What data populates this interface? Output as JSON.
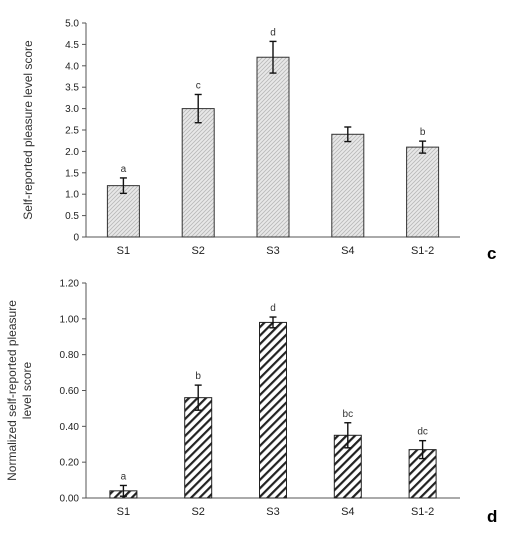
{
  "chart_data": [
    {
      "type": "bar",
      "panel_label": "c",
      "ylabel": "Self-reported pleasure level score",
      "categories": [
        "S1",
        "S2",
        "S3",
        "S4",
        "S1-2"
      ],
      "values": [
        1.2,
        3.0,
        4.2,
        2.4,
        2.1
      ],
      "errors": [
        0.18,
        0.33,
        0.37,
        0.17,
        0.14
      ],
      "significance_labels": [
        "a",
        "c",
        "d",
        "",
        "b"
      ],
      "yticks": [
        "0",
        "0.5",
        "1.0",
        "1.5",
        "2.0",
        "2.5",
        "3.0",
        "3.5",
        "4.0",
        "4.5",
        "5.0"
      ],
      "ylim": [
        0,
        5
      ],
      "grid": false,
      "legend": "none",
      "bar_fill": "light gray, fine diagonal hatch",
      "colors": {
        "bar_fill": "#e8e8e8",
        "hatch": "#b8b8b8",
        "outline": "#333333"
      }
    },
    {
      "type": "bar",
      "panel_label": "d",
      "ylabel": "Normalized self-reported pleasure level score",
      "ylabel_lines": [
        "Normalized self-reported pleasure",
        "level score"
      ],
      "categories": [
        "S1",
        "S2",
        "S3",
        "S4",
        "S1-2"
      ],
      "values": [
        0.04,
        0.56,
        0.98,
        0.35,
        0.27
      ],
      "errors": [
        0.03,
        0.07,
        0.03,
        0.07,
        0.05
      ],
      "significance_labels": [
        "a",
        "b",
        "d",
        "bc",
        "dc"
      ],
      "yticks": [
        "0.00",
        "0.20",
        "0.40",
        "0.60",
        "0.80",
        "1.00",
        "1.20"
      ],
      "ylim": [
        0,
        1.2
      ],
      "grid": false,
      "legend": "none",
      "bar_fill": "white, bold diagonal black stripes",
      "colors": {
        "bar_fill": "#ffffff",
        "hatch": "#222222",
        "outline": "#222222"
      }
    }
  ]
}
